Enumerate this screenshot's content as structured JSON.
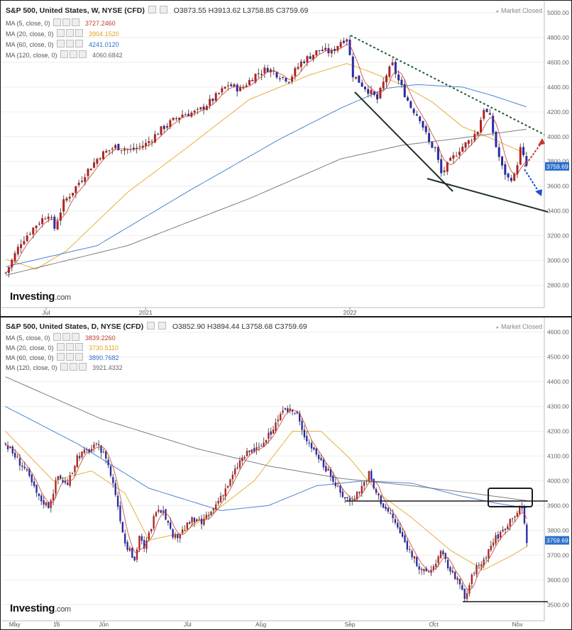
{
  "top": {
    "title": "S&P 500, United States, W, NYSE (CFD)",
    "ohlc": "O3873.55 H3913.62 L3758.85 C3759.69",
    "market_status": "Market Closed",
    "ma": [
      {
        "label": "MA (5, close, 0)",
        "value": "3727.2460",
        "color": "#c0392b"
      },
      {
        "label": "MA (20, close, 0)",
        "value": "3904.1520",
        "color": "#e0a21a"
      },
      {
        "label": "MA (60, close, 0)",
        "value": "4241.0120",
        "color": "#2c6fcb"
      },
      {
        "label": "MA (120, close, 0)",
        "value": "4060.6842",
        "color": "#666666"
      }
    ],
    "last_price": "3759.69",
    "logo": "Investing",
    "logo_domain": ".com"
  },
  "bottom": {
    "title": "S&P 500, United States, D, NYSE (CFD)",
    "ohlc": "O3852.90 H3894.44 L3758.68 C3759.69",
    "market_status": "Market Closed",
    "ma": [
      {
        "label": "MA (5, close, 0)",
        "value": "3839.2260",
        "color": "#c0392b"
      },
      {
        "label": "MA (20, close, 0)",
        "value": "3730.5110",
        "color": "#e0a21a"
      },
      {
        "label": "MA (60, close, 0)",
        "value": "3890.7682",
        "color": "#2c6fcb"
      },
      {
        "label": "MA (120, close, 0)",
        "value": "3921.4332",
        "color": "#666666"
      }
    ],
    "last_price": "3759.69",
    "logo": "Investing",
    "logo_domain": ".com"
  },
  "chart_data": [
    {
      "type": "candlestick",
      "title": "S&P 500, United States, W, NYSE (CFD)",
      "ylim": [
        2700,
        5000
      ],
      "yticks": [
        2800,
        3000,
        3200,
        3400,
        3600,
        3800,
        4000,
        4200,
        4400,
        4600,
        4800,
        5000
      ],
      "xticks": [
        "Jul",
        "2021",
        "2022"
      ],
      "close_path": [
        [
          0,
          2900
        ],
        [
          5,
          3150
        ],
        [
          10,
          3290
        ],
        [
          14,
          3380
        ],
        [
          16,
          3260
        ],
        [
          19,
          3470
        ],
        [
          22,
          3560
        ],
        [
          26,
          3700
        ],
        [
          31,
          3850
        ],
        [
          36,
          3920
        ],
        [
          41,
          3890
        ],
        [
          46,
          3940
        ],
        [
          52,
          4080
        ],
        [
          58,
          4180
        ],
        [
          63,
          4200
        ],
        [
          68,
          4300
        ],
        [
          73,
          4420
        ],
        [
          77,
          4380
        ],
        [
          82,
          4500
        ],
        [
          86,
          4550
        ],
        [
          90,
          4490
        ],
        [
          93,
          4460
        ],
        [
          97,
          4600
        ],
        [
          103,
          4700
        ],
        [
          107,
          4680
        ],
        [
          110,
          4770
        ],
        [
          112,
          4800
        ],
        [
          114,
          4500
        ],
        [
          117,
          4420
        ],
        [
          120,
          4350
        ],
        [
          122,
          4300
        ],
        [
          125,
          4500
        ],
        [
          127,
          4580
        ],
        [
          129,
          4450
        ],
        [
          133,
          4240
        ],
        [
          136,
          4150
        ],
        [
          139,
          3950
        ],
        [
          141,
          3900
        ],
        [
          143,
          3700
        ],
        [
          146,
          3800
        ],
        [
          149,
          3900
        ],
        [
          152,
          3960
        ],
        [
          155,
          4050
        ],
        [
          157,
          4230
        ],
        [
          159,
          4150
        ],
        [
          161,
          3920
        ],
        [
          163,
          3750
        ],
        [
          165,
          3660
        ],
        [
          167,
          3680
        ],
        [
          169,
          3900
        ],
        [
          171,
          3760
        ]
      ],
      "ma_path": [
        {
          "name": "MA (20, close, 0)",
          "color": "#e0a21a",
          "points": [
            [
              0,
              3010
            ],
            [
              10,
              2930
            ],
            [
              20,
              3080
            ],
            [
              40,
              3550
            ],
            [
              60,
              3920
            ],
            [
              80,
              4300
            ],
            [
              100,
              4500
            ],
            [
              112,
              4590
            ],
            [
              120,
              4520
            ],
            [
              130,
              4420
            ],
            [
              140,
              4280
            ],
            [
              150,
              4080
            ],
            [
              160,
              3980
            ],
            [
              171,
              3860
            ]
          ]
        },
        {
          "name": "MA (60, close, 0)",
          "color": "#2c6fcb",
          "points": [
            [
              0,
              2950
            ],
            [
              30,
              3120
            ],
            [
              60,
              3560
            ],
            [
              90,
              3980
            ],
            [
              110,
              4230
            ],
            [
              125,
              4390
            ],
            [
              135,
              4420
            ],
            [
              150,
              4400
            ],
            [
              160,
              4330
            ],
            [
              171,
              4240
            ]
          ]
        },
        {
          "name": "MA (120, close, 0)",
          "color": "#666666",
          "points": [
            [
              0,
              2880
            ],
            [
              40,
              3120
            ],
            [
              80,
              3500
            ],
            [
              110,
              3820
            ],
            [
              130,
              3930
            ],
            [
              150,
              3990
            ],
            [
              171,
              4060
            ]
          ]
        }
      ],
      "last_price": 3759.69,
      "annotations": [
        "descending resistance (dotted)",
        "descending support",
        "lower support",
        "red dotted arrow up",
        "blue dotted arrow down"
      ]
    },
    {
      "type": "candlestick",
      "title": "S&P 500, United States, D, NYSE (CFD)",
      "ylim": [
        3475,
        4625
      ],
      "yticks": [
        3500,
        3600,
        3700,
        3800,
        3900,
        4000,
        4100,
        4200,
        4300,
        4400,
        4500,
        4600
      ],
      "xticks": [
        "May",
        "16",
        "Jun",
        "Jul",
        "Aug",
        "Sep",
        "Oct",
        "Nov"
      ],
      "close_path": [
        [
          0,
          4150
        ],
        [
          8,
          4050
        ],
        [
          14,
          3930
        ],
        [
          18,
          3900
        ],
        [
          22,
          4020
        ],
        [
          26,
          3980
        ],
        [
          30,
          4100
        ],
        [
          34,
          4120
        ],
        [
          38,
          4140
        ],
        [
          42,
          4100
        ],
        [
          46,
          3950
        ],
        [
          50,
          3750
        ],
        [
          54,
          3680
        ],
        [
          56,
          3780
        ],
        [
          58,
          3720
        ],
        [
          62,
          3850
        ],
        [
          66,
          3890
        ],
        [
          70,
          3760
        ],
        [
          74,
          3800
        ],
        [
          78,
          3840
        ],
        [
          82,
          3830
        ],
        [
          86,
          3870
        ],
        [
          90,
          3940
        ],
        [
          94,
          4000
        ],
        [
          98,
          4080
        ],
        [
          102,
          4120
        ],
        [
          106,
          4130
        ],
        [
          110,
          4180
        ],
        [
          114,
          4250
        ],
        [
          118,
          4290
        ],
        [
          122,
          4270
        ],
        [
          124,
          4200
        ],
        [
          128,
          4140
        ],
        [
          132,
          4080
        ],
        [
          136,
          4020
        ],
        [
          140,
          3950
        ],
        [
          144,
          3920
        ],
        [
          148,
          3960
        ],
        [
          152,
          4030
        ],
        [
          154,
          3970
        ],
        [
          158,
          3900
        ],
        [
          162,
          3850
        ],
        [
          166,
          3770
        ],
        [
          170,
          3700
        ],
        [
          174,
          3630
        ],
        [
          178,
          3640
        ],
        [
          182,
          3710
        ],
        [
          186,
          3640
        ],
        [
          190,
          3580
        ],
        [
          192,
          3520
        ],
        [
          196,
          3640
        ],
        [
          200,
          3680
        ],
        [
          204,
          3760
        ],
        [
          208,
          3800
        ],
        [
          212,
          3860
        ],
        [
          216,
          3890
        ],
        [
          218,
          3760
        ]
      ],
      "ma_path": [
        {
          "name": "MA (20, close, 0)",
          "color": "#e0a21a",
          "points": [
            [
              0,
              4200
            ],
            [
              20,
              4000
            ],
            [
              36,
              4040
            ],
            [
              50,
              3950
            ],
            [
              60,
              3760
            ],
            [
              74,
              3790
            ],
            [
              88,
              3880
            ],
            [
              104,
              4000
            ],
            [
              120,
              4200
            ],
            [
              132,
              4200
            ],
            [
              144,
              4090
            ],
            [
              156,
              3950
            ],
            [
              170,
              3850
            ],
            [
              186,
              3720
            ],
            [
              200,
              3640
            ],
            [
              212,
              3700
            ],
            [
              218,
              3735
            ]
          ]
        },
        {
          "name": "MA (60, close, 0)",
          "color": "#2c6fcb",
          "points": [
            [
              0,
              4300
            ],
            [
              30,
              4150
            ],
            [
              60,
              3970
            ],
            [
              90,
              3880
            ],
            [
              110,
              3900
            ],
            [
              130,
              3980
            ],
            [
              150,
              4000
            ],
            [
              170,
              3990
            ],
            [
              190,
              3940
            ],
            [
              205,
              3910
            ],
            [
              218,
              3890
            ]
          ]
        },
        {
          "name": "MA (120, close, 0)",
          "color": "#666666",
          "points": [
            [
              0,
              4420
            ],
            [
              40,
              4250
            ],
            [
              80,
              4130
            ],
            [
              110,
              4060
            ],
            [
              140,
              4010
            ],
            [
              170,
              3980
            ],
            [
              195,
              3950
            ],
            [
              218,
              3920
            ]
          ]
        }
      ],
      "last_price": 3759.69,
      "annotations": [
        "horizontal resistance at 3900",
        "support line at 3500",
        "rectangle around recent highs"
      ]
    }
  ]
}
